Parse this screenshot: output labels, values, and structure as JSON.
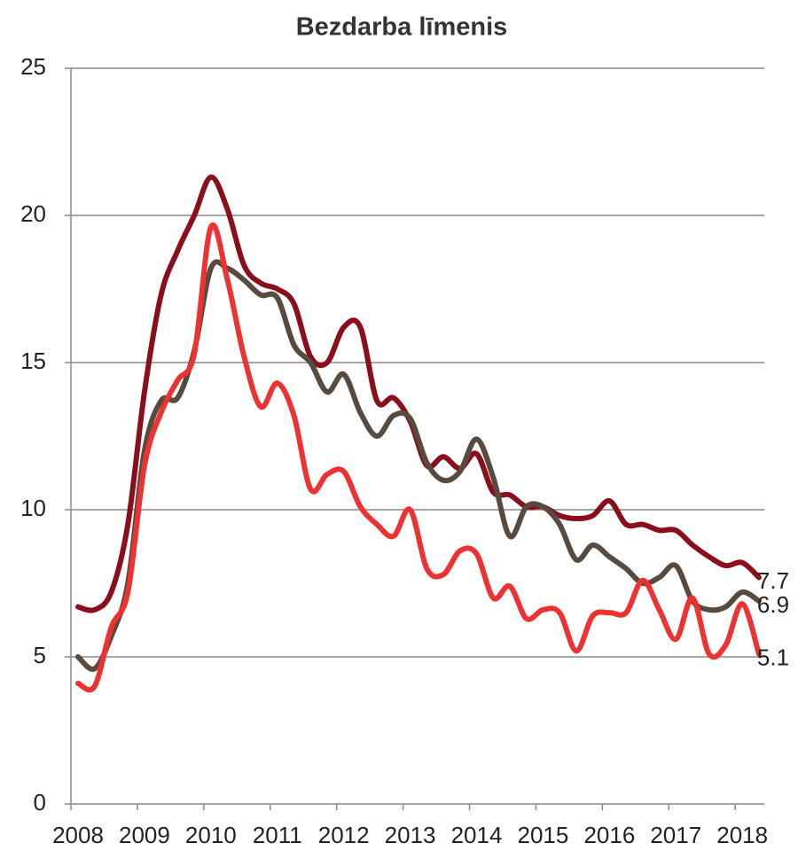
{
  "chart_data": {
    "type": "line",
    "title": "Bezdarba līmenis",
    "categories": [
      "2008",
      null,
      null,
      null,
      "2009",
      null,
      null,
      null,
      "2010",
      null,
      null,
      null,
      "2011",
      null,
      null,
      null,
      "2012",
      null,
      null,
      null,
      "2013",
      null,
      null,
      null,
      "2014",
      null,
      null,
      null,
      "2015",
      null,
      null,
      null,
      "2016",
      null,
      null,
      null,
      "2017",
      null,
      null,
      null,
      "2018",
      null
    ],
    "series": [
      {
        "color": "#8b0e1c",
        "values": [
          6.7,
          6.6,
          7.2,
          9.5,
          14,
          17.3,
          18.8,
          20,
          21.3,
          20.2,
          18.3,
          17.7,
          17.5,
          17,
          15.2,
          15,
          16.2,
          16.2,
          13.7,
          13.8,
          13,
          11.5,
          11.8,
          11.4,
          11.9,
          10.6,
          10.5,
          10.1,
          10.1,
          9.8,
          9.7,
          9.8,
          10.3,
          9.5,
          9.5,
          9.3,
          9.3,
          8.8,
          8.4,
          8.1,
          8.2,
          7.7
        ]
      },
      {
        "color": "#574b40",
        "values": [
          5,
          4.6,
          5.7,
          7.5,
          12,
          13.7,
          13.8,
          15.4,
          18.2,
          18.2,
          17.8,
          17.3,
          17.2,
          15.6,
          15,
          14,
          14.6,
          13.3,
          12.5,
          13.2,
          13.1,
          11.6,
          11,
          11.3,
          12.4,
          11.1,
          9.1,
          10.1,
          10.1,
          9.5,
          8.3,
          8.8,
          8.4,
          8,
          7.5,
          7.7,
          8.1,
          6.9,
          6.6,
          6.7,
          7.2,
          6.9
        ]
      },
      {
        "color": "#ee3232",
        "values": [
          4.1,
          4,
          6,
          7.2,
          11.5,
          13.3,
          14.4,
          15.3,
          19.6,
          17.8,
          15.2,
          13.5,
          14.3,
          13.2,
          10.7,
          11.2,
          11.3,
          10.1,
          9.5,
          9.1,
          10,
          8,
          7.8,
          8.6,
          8.5,
          7,
          7.4,
          6.3,
          6.6,
          6.5,
          5.2,
          6.4,
          6.5,
          6.5,
          7.6,
          6.6,
          5.6,
          7,
          5.1,
          5.4,
          6.8,
          5.1
        ]
      }
    ],
    "ylim": [
      0,
      25
    ],
    "yticks": [
      0,
      5,
      10,
      15,
      20,
      25
    ],
    "grid": true
  }
}
